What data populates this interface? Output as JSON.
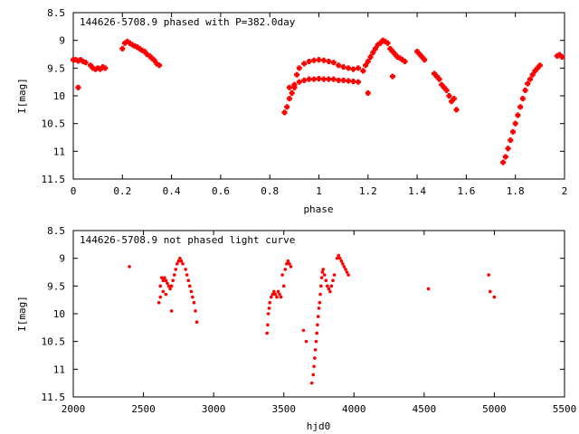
{
  "chart_data": [
    {
      "type": "scatter",
      "title": "144626-5708.9 phased with P=382.0day",
      "xlabel": "phase",
      "ylabel": "I[mag]",
      "xlim": [
        0,
        2
      ],
      "ylim": [
        11.5,
        8.5
      ],
      "y_inverted": true,
      "xticks": [
        "0",
        "0.2",
        "0.4",
        "0.6",
        "0.8",
        "1",
        "1.2",
        "1.4",
        "1.6",
        "1.8",
        "2"
      ],
      "yticks": [
        "8.5",
        "9",
        "9.5",
        "10",
        "10.5",
        "11",
        "11.5"
      ],
      "grid": false,
      "color": "#ff0000",
      "marker": "plus",
      "series": [
        {
          "x": [
            0.0,
            0.01,
            0.02,
            0.03,
            0.04,
            0.05,
            0.02,
            0.07,
            0.08,
            0.09,
            0.1,
            0.11,
            0.12,
            0.13,
            0.2,
            0.21,
            0.22,
            0.23,
            0.24,
            0.25,
            0.26,
            0.27,
            0.28,
            0.29,
            0.3,
            0.31,
            0.32,
            0.33,
            0.34,
            0.35,
            0.86,
            0.87,
            0.88,
            0.89,
            0.9,
            0.91,
            0.92,
            0.94,
            0.96,
            0.98,
            1.0,
            1.02,
            1.04,
            1.06,
            1.08,
            1.1,
            1.12,
            1.14,
            1.16,
            0.88,
            0.9,
            0.92,
            0.94,
            0.96,
            0.98,
            1.0,
            1.02,
            1.04,
            1.06,
            1.08,
            1.1,
            1.12,
            1.14,
            1.16,
            1.18,
            1.19,
            1.2,
            1.21,
            1.22,
            1.23,
            1.24,
            1.25,
            1.26,
            1.27,
            1.28,
            1.29,
            1.3,
            1.31,
            1.32,
            1.33,
            1.34,
            1.35,
            1.4,
            1.41,
            1.42,
            1.43,
            1.47,
            1.48,
            1.49,
            1.5,
            1.51,
            1.52,
            1.53,
            1.54,
            1.55,
            1.56,
            1.2,
            1.3,
            1.75,
            1.76,
            1.77,
            1.78,
            1.79,
            1.8,
            1.81,
            1.82,
            1.83,
            1.84,
            1.85,
            1.86,
            1.87,
            1.88,
            1.89,
            1.9,
            1.97,
            1.98,
            1.99
          ],
          "y": [
            9.35,
            9.35,
            9.37,
            9.35,
            9.38,
            9.4,
            9.85,
            9.45,
            9.5,
            9.52,
            9.5,
            9.52,
            9.48,
            9.5,
            9.15,
            9.05,
            9.02,
            9.05,
            9.08,
            9.1,
            9.12,
            9.15,
            9.18,
            9.2,
            9.25,
            9.28,
            9.32,
            9.36,
            9.42,
            9.45,
            10.3,
            10.2,
            10.05,
            9.95,
            9.85,
            9.62,
            9.5,
            9.42,
            9.38,
            9.36,
            9.35,
            9.36,
            9.38,
            9.4,
            9.45,
            9.48,
            9.5,
            9.52,
            9.5,
            9.85,
            9.8,
            9.75,
            9.72,
            9.7,
            9.7,
            9.69,
            9.7,
            9.7,
            9.7,
            9.72,
            9.72,
            9.73,
            9.74,
            9.75,
            9.55,
            9.45,
            9.38,
            9.3,
            9.22,
            9.15,
            9.08,
            9.05,
            9.0,
            9.02,
            9.05,
            9.15,
            9.2,
            9.25,
            9.3,
            9.32,
            9.35,
            9.38,
            9.2,
            9.25,
            9.3,
            9.35,
            9.6,
            9.65,
            9.7,
            9.8,
            9.85,
            9.9,
            10.0,
            10.1,
            10.05,
            10.25,
            9.95,
            9.65,
            11.2,
            11.1,
            10.95,
            10.8,
            10.65,
            10.5,
            10.35,
            10.2,
            10.05,
            9.9,
            9.78,
            9.7,
            9.62,
            9.55,
            9.5,
            9.45,
            9.28,
            9.26,
            9.3
          ]
        }
      ]
    },
    {
      "type": "scatter",
      "title": "144626-5708.9 not phased light curve",
      "xlabel": "hjd0",
      "ylabel": "I[mag]",
      "xlim": [
        2000,
        5500
      ],
      "ylim": [
        11.5,
        8.5
      ],
      "y_inverted": true,
      "xticks": [
        "2000",
        "2500",
        "3000",
        "3500",
        "4000",
        "4500",
        "5000",
        "5500"
      ],
      "yticks": [
        "8.5",
        "9",
        "9.5",
        "10",
        "10.5",
        "11",
        "11.5"
      ],
      "grid": false,
      "color": "#ff0000",
      "marker": "dot",
      "series": [
        {
          "x": [
            2400,
            2610,
            2620,
            2630,
            2640,
            2650,
            2660,
            2670,
            2680,
            2690,
            2700,
            2710,
            2720,
            2730,
            2740,
            2750,
            2760,
            2770,
            2780,
            2620,
            2640,
            2660,
            2700,
            2800,
            2810,
            2820,
            2830,
            2840,
            2850,
            2860,
            2870,
            2880,
            3380,
            3385,
            3390,
            3395,
            3400,
            3410,
            3420,
            3430,
            3440,
            3450,
            3460,
            3470,
            3480,
            3490,
            3500,
            3510,
            3520,
            3530,
            3540,
            3550,
            3640,
            3660,
            3700,
            3710,
            3715,
            3720,
            3725,
            3730,
            3735,
            3740,
            3745,
            3750,
            3755,
            3760,
            3765,
            3770,
            3775,
            3780,
            3790,
            3800,
            3810,
            3820,
            3830,
            3840,
            3850,
            3860,
            3880,
            3890,
            3900,
            3910,
            3920,
            3930,
            3940,
            3950,
            3960,
            4530,
            4960,
            4970,
            5000
          ],
          "y": [
            9.15,
            9.8,
            9.5,
            9.35,
            9.4,
            9.35,
            9.4,
            9.45,
            9.5,
            9.55,
            9.5,
            9.4,
            9.3,
            9.2,
            9.1,
            9.05,
            9.0,
            9.05,
            9.1,
            9.7,
            9.6,
            9.65,
            9.95,
            9.2,
            9.3,
            9.4,
            9.5,
            9.6,
            9.7,
            9.8,
            9.95,
            10.15,
            10.35,
            10.2,
            10.0,
            9.9,
            9.8,
            9.7,
            9.65,
            9.6,
            9.65,
            9.7,
            9.6,
            9.65,
            9.7,
            9.3,
            9.5,
            9.2,
            9.1,
            9.05,
            9.1,
            9.15,
            10.3,
            10.5,
            11.25,
            11.1,
            10.95,
            10.8,
            10.65,
            10.5,
            10.35,
            10.2,
            10.05,
            9.9,
            9.8,
            9.65,
            9.5,
            9.35,
            9.25,
            9.2,
            9.3,
            9.4,
            9.5,
            9.55,
            9.6,
            9.5,
            9.4,
            9.3,
            9.0,
            8.95,
            9.0,
            9.05,
            9.1,
            9.15,
            9.2,
            9.25,
            9.3,
            9.55,
            9.3,
            9.6,
            9.7
          ]
        }
      ]
    }
  ]
}
